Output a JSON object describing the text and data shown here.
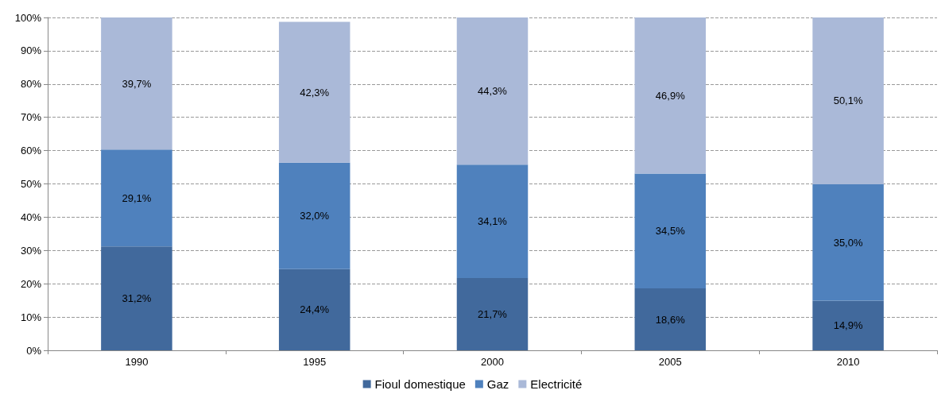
{
  "chart_data": {
    "type": "bar",
    "stacked": true,
    "categories": [
      "1990",
      "1995",
      "2000",
      "2005",
      "2010"
    ],
    "series": [
      {
        "name": "Fioul domestique",
        "color": "#41699c",
        "values": [
          31.2,
          24.4,
          21.7,
          18.6,
          14.9
        ],
        "value_labels": [
          "31,2%",
          "24,4%",
          "21,7%",
          "18,6%",
          "14,9%"
        ]
      },
      {
        "name": "Gaz",
        "color": "#4f81bd",
        "values": [
          29.1,
          32.0,
          34.1,
          34.5,
          35.0
        ],
        "value_labels": [
          "29,1%",
          "32,0%",
          "34,1%",
          "34,5%",
          "35,0%"
        ]
      },
      {
        "name": "Electricité",
        "color": "#aab9d8",
        "values": [
          39.7,
          42.3,
          44.3,
          46.9,
          50.1
        ],
        "value_labels": [
          "39,7%",
          "42,3%",
          "44,3%",
          "46,9%",
          "50,1%"
        ]
      }
    ],
    "ylim": [
      0,
      100
    ],
    "yticks": [
      {
        "value": 0,
        "label": "0%"
      },
      {
        "value": 10,
        "label": "10%"
      },
      {
        "value": 20,
        "label": "20%"
      },
      {
        "value": 30,
        "label": "30%"
      },
      {
        "value": 40,
        "label": "40%"
      },
      {
        "value": 50,
        "label": "50%"
      },
      {
        "value": 60,
        "label": "60%"
      },
      {
        "value": 70,
        "label": "70%"
      },
      {
        "value": 80,
        "label": "80%"
      },
      {
        "value": 90,
        "label": "90%"
      },
      {
        "value": 100,
        "label": "100%"
      }
    ],
    "grid": "y",
    "legend": "bottom"
  }
}
